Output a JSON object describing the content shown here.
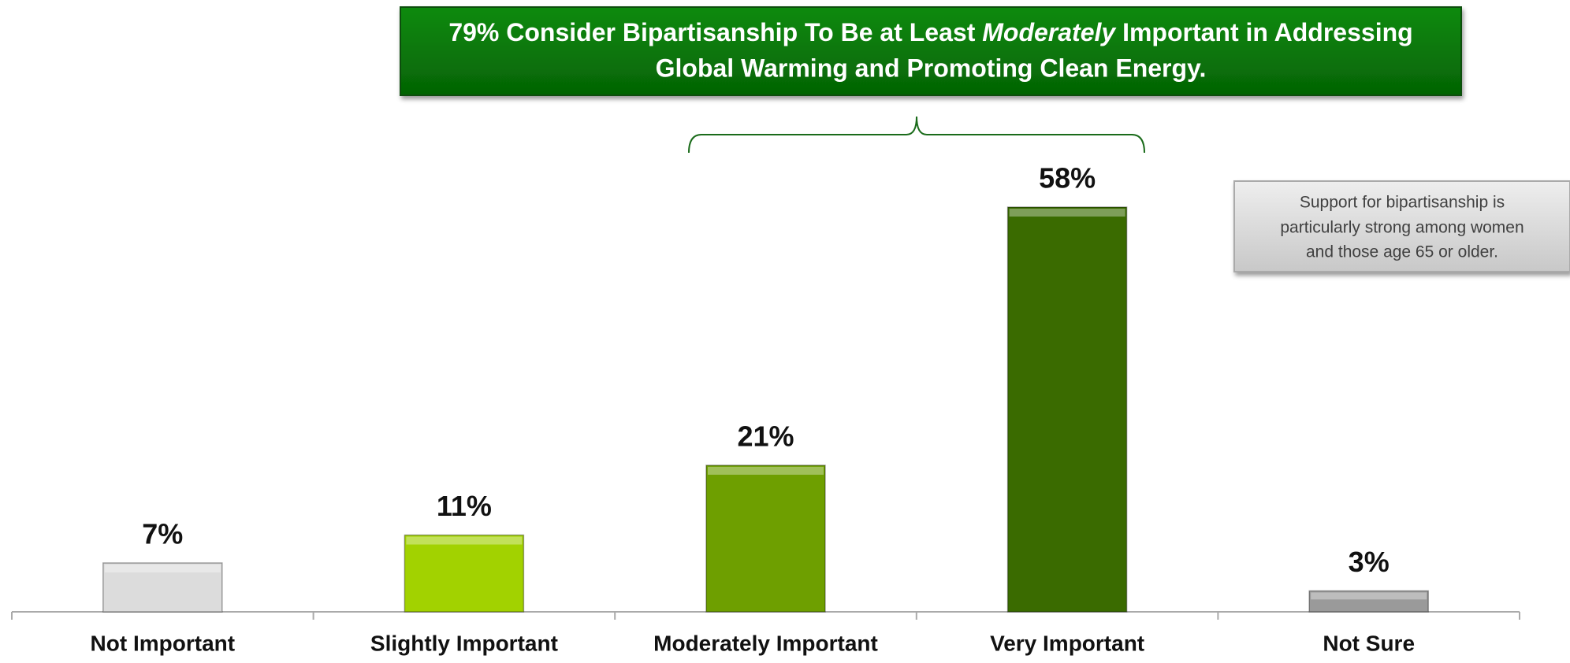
{
  "chart_data": {
    "type": "bar",
    "title": [
      "79% Consider Bipartisanship To Be at Least ",
      "Moderately",
      " Important in Addressing",
      "Global Warming and Promoting Clean Energy."
    ],
    "note": [
      "Support for bipartisanship is",
      "particularly strong among women",
      "and those age 65 or older."
    ],
    "categories": [
      "Not Important",
      "Slightly Important",
      "Moderately Important",
      "Very Important",
      "Not Sure"
    ],
    "values": [
      7,
      11,
      21,
      58,
      3
    ],
    "value_labels": [
      "7%",
      "11%",
      "21%",
      "58%",
      "3%"
    ],
    "colors": [
      "#dcdcdc",
      "#a2d200",
      "#6e9f00",
      "#3a6b00",
      "#9a9a9a"
    ]
  }
}
